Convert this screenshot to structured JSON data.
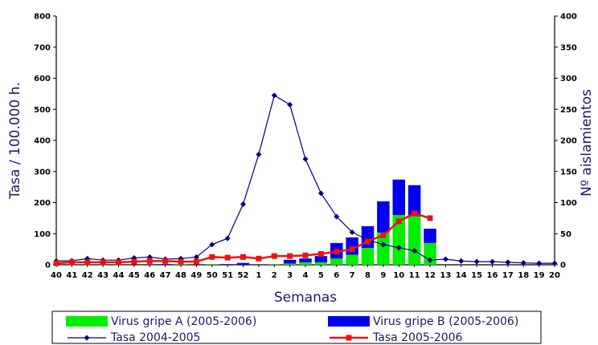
{
  "chart_data": {
    "type": "bar",
    "xlabel": "Semanas",
    "ylabel_left": "Tasa / 100.000 h.",
    "ylabel_right": "Nº aislamientos",
    "ylim_left": [
      0,
      800
    ],
    "ylim_right": [
      0,
      400
    ],
    "yticks_left": [
      "0",
      "100",
      "200",
      "300",
      "400",
      "500",
      "600",
      "700",
      "800"
    ],
    "yticks_right": [
      "0",
      "50",
      "100",
      "150",
      "200",
      "250",
      "300",
      "350",
      "400"
    ],
    "categories": [
      "40",
      "41",
      "42",
      "43",
      "44",
      "45",
      "46",
      "47",
      "48",
      "49",
      "50",
      "51",
      "52",
      "1",
      "2",
      "3",
      "4",
      "5",
      "6",
      "7",
      "8",
      "9",
      "10",
      "11",
      "12",
      "13",
      "14",
      "15",
      "16",
      "17",
      "18",
      "19",
      "20"
    ],
    "bar_series": [
      {
        "name": "Virus gripe A (2005-2006)",
        "color": "#00ee00",
        "axis": "right",
        "values": [
          0,
          0,
          0,
          0,
          0,
          0,
          0,
          0,
          1,
          0,
          1,
          0,
          0,
          0,
          1,
          2,
          4,
          4,
          10,
          16,
          27,
          52,
          80,
          78,
          35,
          null,
          null,
          null,
          null,
          null,
          null,
          null,
          null
        ]
      },
      {
        "name": "Virus gripe B (2005-2006)",
        "color": "#0000ee",
        "axis": "right",
        "values": [
          0,
          0,
          0,
          0,
          0,
          0,
          0,
          1,
          0,
          0,
          0,
          1,
          3,
          0,
          0,
          6,
          6,
          10,
          25,
          28,
          35,
          50,
          57,
          50,
          23,
          null,
          null,
          null,
          null,
          null,
          null,
          null,
          null
        ]
      }
    ],
    "line_series": [
      {
        "name": "Tasa 2004-2005",
        "color": "#000080",
        "marker": "diamond",
        "axis": "left",
        "values": [
          12,
          13,
          20,
          15,
          15,
          22,
          25,
          18,
          20,
          25,
          65,
          85,
          195,
          355,
          545,
          515,
          340,
          230,
          155,
          105,
          80,
          65,
          55,
          45,
          15,
          18,
          12,
          10,
          10,
          8,
          6,
          5,
          5
        ]
      },
      {
        "name": "Tasa 2005-2006",
        "color": "#ee1111",
        "marker": "square",
        "axis": "left",
        "values": [
          5,
          8,
          8,
          8,
          8,
          10,
          12,
          12,
          10,
          10,
          25,
          23,
          25,
          20,
          28,
          28,
          30,
          35,
          42,
          50,
          75,
          95,
          140,
          165,
          150,
          null,
          null,
          null,
          null,
          null,
          null,
          null,
          null
        ]
      }
    ],
    "legend_placement": "bottom"
  }
}
